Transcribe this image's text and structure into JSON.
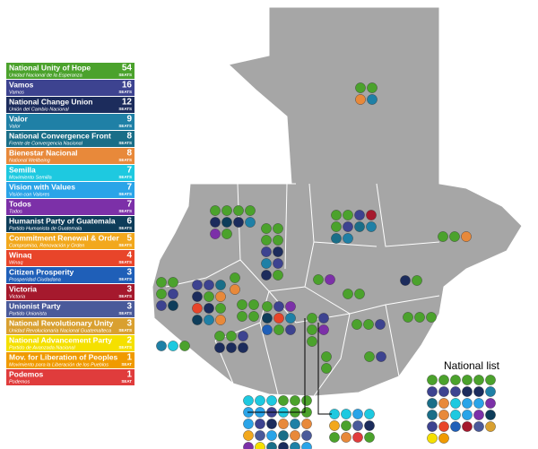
{
  "legend": [
    {
      "name": "National Unity of Hope",
      "subtitle": "Unidad Nacional de la Esperanza",
      "seats": 54,
      "unit": "SEATS",
      "color": "#4ba22c"
    },
    {
      "name": "Vamos",
      "subtitle": "Vamos",
      "seats": 16,
      "unit": "SEATS",
      "color": "#3d4390"
    },
    {
      "name": "National Change Union",
      "subtitle": "Unión del Cambio Nacional",
      "seats": 12,
      "unit": "SEATS",
      "color": "#1c2c5c"
    },
    {
      "name": "Valor",
      "subtitle": "Valor",
      "seats": 9,
      "unit": "SEATS",
      "color": "#1f80a6"
    },
    {
      "name": "National Convergence Front",
      "subtitle": "Frente de Convergencia Nacional",
      "seats": 8,
      "unit": "SEATS",
      "color": "#1a6e88"
    },
    {
      "name": "Bienestar Nacional",
      "subtitle": "National Wellbeing",
      "seats": 8,
      "unit": "SEATS",
      "color": "#e8893a"
    },
    {
      "name": "Semilla",
      "subtitle": "Movimiento Semilla",
      "seats": 7,
      "unit": "SEATS",
      "color": "#1ec9e0"
    },
    {
      "name": "Vision with Values",
      "subtitle": "Visión con Valores",
      "seats": 7,
      "unit": "SEATS",
      "color": "#2aa4e8"
    },
    {
      "name": "Todos",
      "subtitle": "Todos",
      "seats": 7,
      "unit": "SEATS",
      "color": "#7c30a8"
    },
    {
      "name": "Humanist Party of Guatemala",
      "subtitle": "Partido Humanista de Guatemala",
      "seats": 6,
      "unit": "SEATS",
      "color": "#0e3d5a"
    },
    {
      "name": "Commitment Renewal & Order",
      "subtitle": "Compromiso, Renovación y Orden",
      "seats": 5,
      "unit": "SEATS",
      "color": "#f2a81d"
    },
    {
      "name": "Winaq",
      "subtitle": "Winaq",
      "seats": 4,
      "unit": "SEATS",
      "color": "#e8452a"
    },
    {
      "name": "Citizen Prosperity",
      "subtitle": "Prosperidad Ciudadana",
      "seats": 3,
      "unit": "SEATS",
      "color": "#1f5fb8"
    },
    {
      "name": "Victoria",
      "subtitle": "Victoria",
      "seats": 3,
      "unit": "SEATS",
      "color": "#a5192d"
    },
    {
      "name": "Unionist Party",
      "subtitle": "Partido Unionista",
      "seats": 3,
      "unit": "SEATS",
      "color": "#4a5a9a"
    },
    {
      "name": "National Revolutionary Unity",
      "subtitle": "Unidad Revolucionaria Nacional Guatemalteca",
      "seats": 3,
      "unit": "SEATS",
      "color": "#d9a030"
    },
    {
      "name": "National Advancement Party",
      "subtitle": "Partido de Avanzada Nacional",
      "seats": 2,
      "unit": "SEATS",
      "color": "#f5e000"
    },
    {
      "name": "Mov. for Liberation of Peoples",
      "subtitle": "Movimiento para la Liberación de los Pueblos",
      "seats": 1,
      "unit": "SEAT",
      "color": "#f09a00"
    },
    {
      "name": "Podemos",
      "subtitle": "Podemos",
      "seats": 1,
      "unit": "SEAT",
      "color": "#e03c3c"
    }
  ],
  "national_list_label": "National list"
}
